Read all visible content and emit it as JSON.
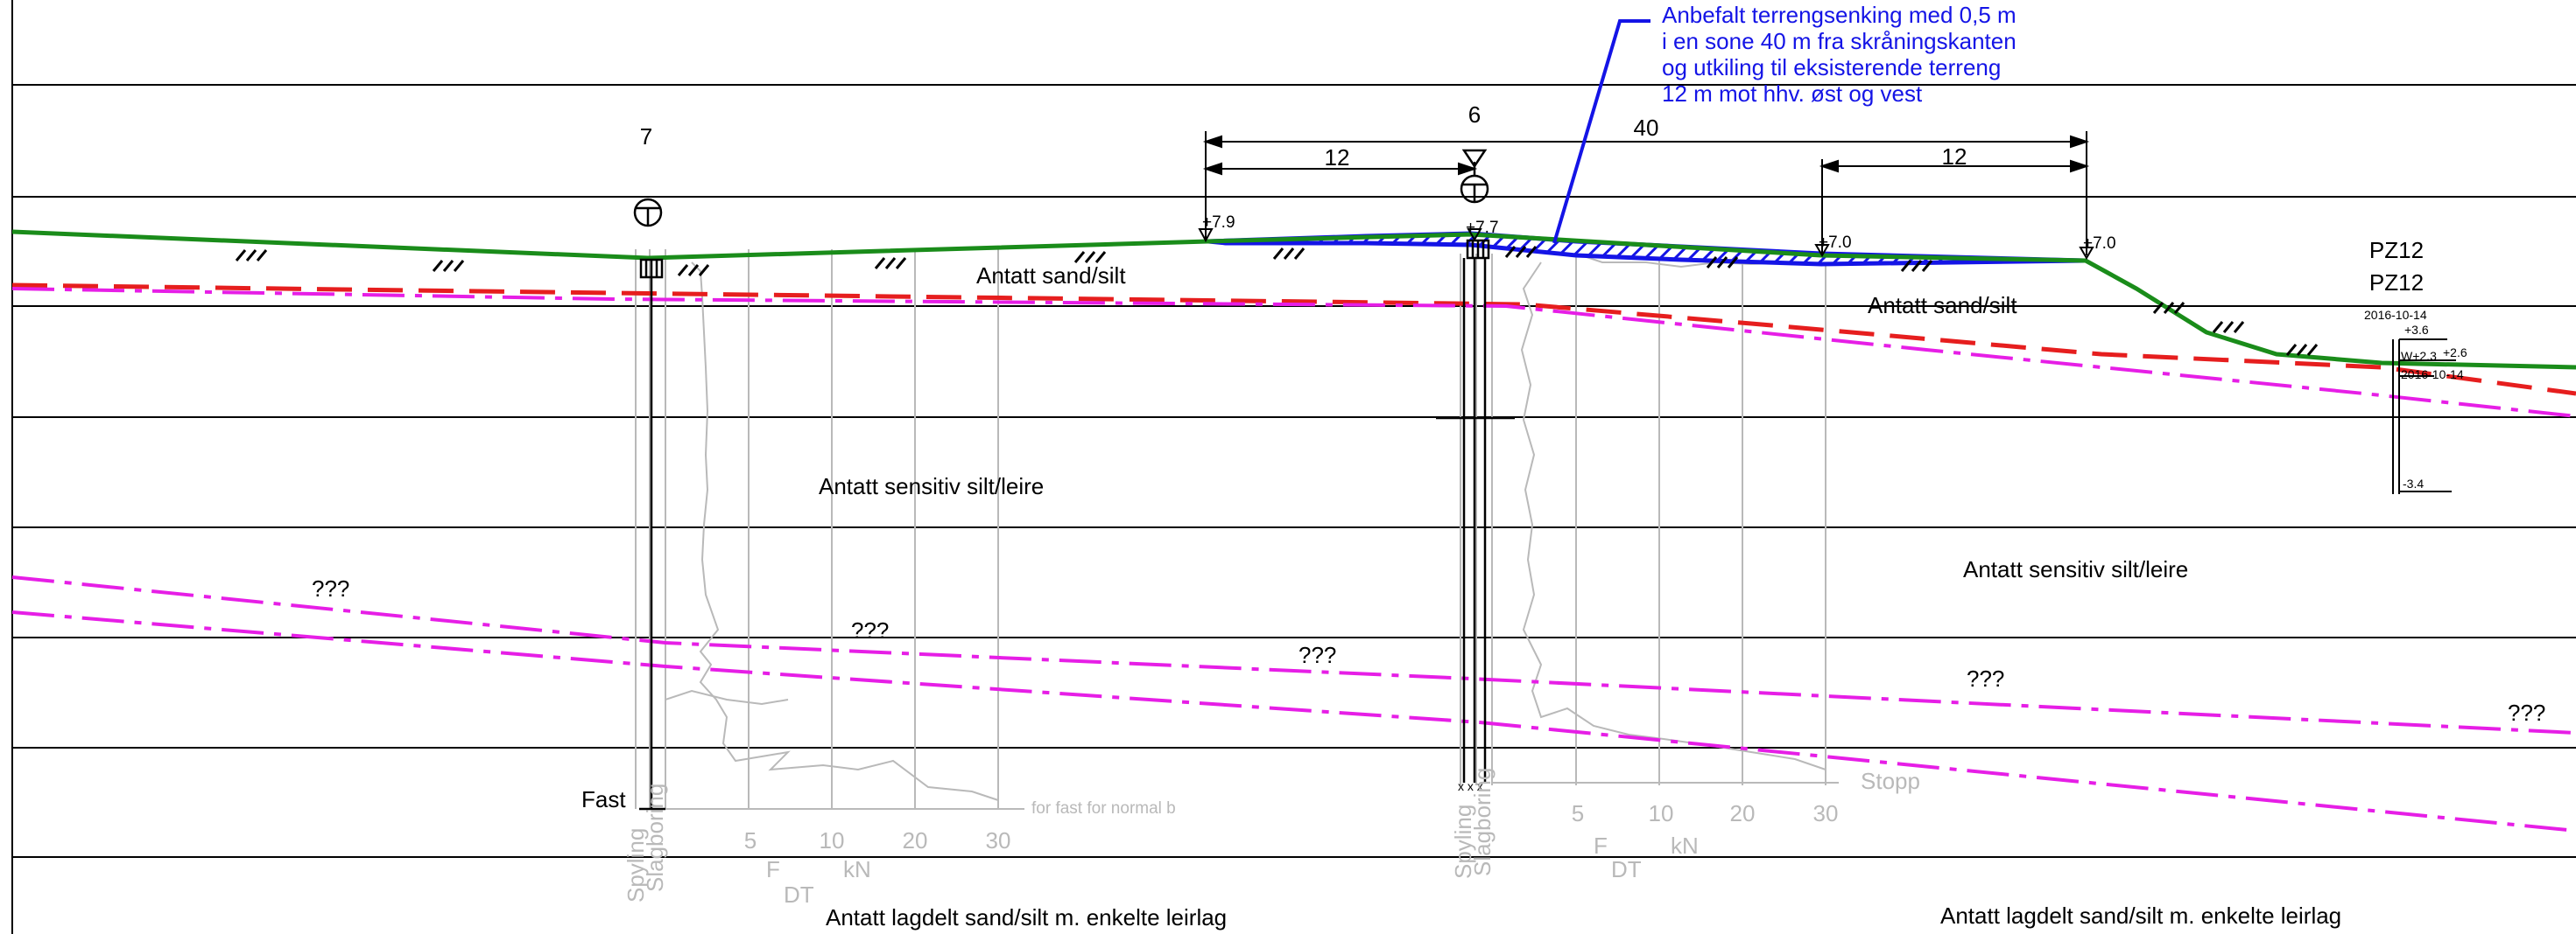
{
  "boreholes": [
    {
      "id": "7",
      "label": "7"
    },
    {
      "id": "6",
      "label": "6"
    },
    {
      "id": "pz12",
      "label": "PZ12",
      "sublabel": "PZ12"
    }
  ],
  "annotation": {
    "lines": [
      "Anbefalt terrengsenking med 0,5 m",
      "i en sone 40 m fra skråningskanten",
      "og utkiling til eksisterende terreng",
      "12 m mot hhv. øst og vest"
    ]
  },
  "dimensions": {
    "total": "40",
    "left": "12",
    "right": "12"
  },
  "elevations": {
    "a": "+7.9",
    "b": "+7.7",
    "c": "+7.0",
    "d": "+7.0"
  },
  "pz12": {
    "date1": "2016-10-14",
    "top": "+3.6",
    "water": "W+2.3",
    "water_val": "+2.6",
    "date2": "2016-10-14",
    "bottom": "-3.4"
  },
  "layers": {
    "sand_left": "Antatt sand/silt",
    "sand_right": "Antatt sand/silt",
    "sensitive_left": "Antatt sensitiv silt/leire",
    "sensitive_right": "Antatt sensitiv silt/leire",
    "layered_left": "Antatt lagdelt sand/silt m. enkelte leirlag",
    "layered_right": "Antatt lagdelt sand/silt m. enkelte leirlag"
  },
  "unknowns": {
    "q1": "???",
    "q2": "???",
    "q3": "???",
    "q4": "???",
    "q5": "???"
  },
  "sounding_7": {
    "fast": "Fast",
    "spyling": "Spyling",
    "slagboring": "Slagboring",
    "t5": "5",
    "t10": "10",
    "t20": "20",
    "t30": "30",
    "f": "F",
    "kn": "kN",
    "dt": "DT",
    "note": "for fast for normal b"
  },
  "sounding_6": {
    "stopp": "Stopp",
    "spyling": "Spyling",
    "slagboring": "Slagboring",
    "t5": "5",
    "t10": "10",
    "t20": "20",
    "t30": "30",
    "f": "F",
    "kn": "kN",
    "dt": "DT",
    "marks": "x x x"
  },
  "colors": {
    "terrain": "#1a8c1a",
    "excavation": "#1414e6",
    "red_dash": "#e61e1e",
    "magenta": "#e61ee6",
    "grid": "#000000",
    "sounding": "#b9b9b9"
  }
}
